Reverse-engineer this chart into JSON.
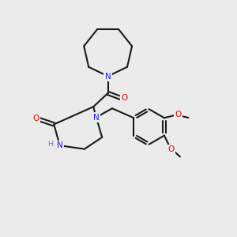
{
  "bg": "#ebebeb",
  "bc": "#1a1a1a",
  "nc": "#1a1aff",
  "oc": "#ee0000",
  "hc": "#7a7a7a",
  "lw": 1.5,
  "figsize": [
    3.0,
    3.0
  ],
  "dpi": 100,
  "xlim": [
    0,
    10
  ],
  "ylim": [
    0,
    10
  ]
}
